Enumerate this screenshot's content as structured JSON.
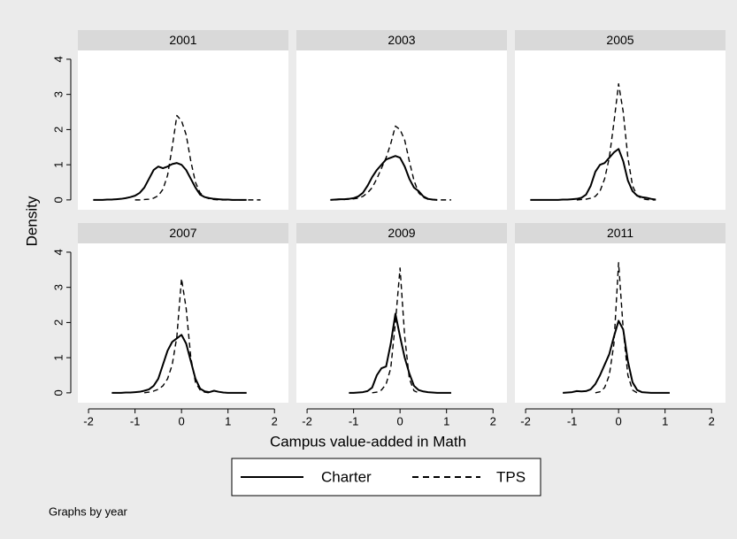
{
  "figure": {
    "x_label": "Campus value-added in Math",
    "y_label": "Density",
    "note": "Graphs by year"
  },
  "chart_data": [
    {
      "type": "line",
      "title": "2001",
      "x": [
        -2,
        -1.9,
        -1.8,
        -1.7,
        -1.6,
        -1.5,
        -1.4,
        -1.3,
        -1.2,
        -1.1,
        -1,
        -0.9,
        -0.8,
        -0.7,
        -0.6,
        -0.5,
        -0.4,
        -0.3,
        -0.2,
        -0.1,
        0,
        0.1,
        0.2,
        0.3,
        0.4,
        0.5,
        0.6,
        0.7,
        0.8,
        0.9,
        1,
        1.1,
        1.2,
        1.3,
        1.4,
        1.5,
        1.6,
        1.7,
        1.8,
        1.9,
        2
      ],
      "series": [
        {
          "name": "Charter",
          "color": "#000000",
          "line_style": "solid",
          "values": [
            null,
            0,
            0,
            0,
            0.01,
            0.01,
            0.02,
            0.03,
            0.05,
            0.08,
            0.12,
            0.2,
            0.35,
            0.6,
            0.85,
            0.95,
            0.9,
            0.95,
            1.02,
            1.05,
            1.0,
            0.85,
            0.6,
            0.35,
            0.15,
            0.08,
            0.05,
            0.03,
            0.02,
            0.01,
            0.01,
            0,
            0,
            0,
            0,
            null,
            null,
            null,
            null,
            null,
            null
          ]
        },
        {
          "name": "TPS",
          "color": "#000000",
          "line_style": "dashed",
          "values": [
            null,
            null,
            null,
            null,
            null,
            null,
            null,
            null,
            null,
            null,
            0,
            0,
            0.01,
            0.02,
            0.05,
            0.12,
            0.3,
            0.7,
            1.5,
            2.4,
            2.25,
            1.85,
            1.1,
            0.5,
            0.2,
            0.08,
            0.03,
            0.01,
            0,
            0,
            0,
            0,
            0,
            0,
            0,
            0,
            0,
            0,
            null,
            null,
            null
          ]
        }
      ],
      "xlim": [
        -2.23,
        2.3
      ],
      "ylim": [
        -0.28,
        4.25
      ],
      "yticks": [
        0,
        1,
        2,
        3,
        4
      ]
    },
    {
      "type": "line",
      "title": "2003",
      "x": [
        -2,
        -1.9,
        -1.8,
        -1.7,
        -1.6,
        -1.5,
        -1.4,
        -1.3,
        -1.2,
        -1.1,
        -1,
        -0.9,
        -0.8,
        -0.7,
        -0.6,
        -0.5,
        -0.4,
        -0.3,
        -0.2,
        -0.1,
        0,
        0.1,
        0.2,
        0.3,
        0.4,
        0.5,
        0.6,
        0.7,
        0.8,
        0.9,
        1,
        1.1,
        1.2,
        1.3,
        1.4,
        1.5,
        1.6,
        1.7,
        1.8,
        1.9,
        2
      ],
      "series": [
        {
          "name": "Charter",
          "color": "#000000",
          "line_style": "solid",
          "values": [
            null,
            null,
            null,
            null,
            null,
            0,
            0.01,
            0.02,
            0.02,
            0.03,
            0.05,
            0.1,
            0.2,
            0.4,
            0.65,
            0.85,
            1.0,
            1.15,
            1.2,
            1.25,
            1.2,
            0.95,
            0.6,
            0.35,
            0.25,
            0.1,
            0.03,
            0.01,
            0,
            null,
            null,
            null,
            null,
            null,
            null,
            null,
            null,
            null,
            null,
            null,
            null
          ]
        },
        {
          "name": "TPS",
          "color": "#000000",
          "line_style": "dashed",
          "values": [
            null,
            null,
            null,
            null,
            null,
            null,
            0,
            0.01,
            0.01,
            0.02,
            0.03,
            0.05,
            0.1,
            0.2,
            0.35,
            0.6,
            0.9,
            1.2,
            1.6,
            2.1,
            2.0,
            1.7,
            1.1,
            0.55,
            0.2,
            0.07,
            0.02,
            0.01,
            0,
            0,
            0,
            0,
            null,
            null,
            null,
            null,
            null,
            null,
            null,
            null,
            null
          ]
        }
      ],
      "xlim": [
        -2.23,
        2.3
      ],
      "ylim": [
        -0.28,
        4.25
      ]
    },
    {
      "type": "line",
      "title": "2005",
      "x": [
        -2,
        -1.9,
        -1.8,
        -1.7,
        -1.6,
        -1.5,
        -1.4,
        -1.3,
        -1.2,
        -1.1,
        -1,
        -0.9,
        -0.8,
        -0.7,
        -0.6,
        -0.5,
        -0.4,
        -0.3,
        -0.2,
        -0.1,
        0,
        0.1,
        0.2,
        0.3,
        0.4,
        0.5,
        0.6,
        0.7,
        0.8,
        0.9,
        1,
        1.1,
        1.2,
        1.3,
        1.4,
        1.5,
        1.6,
        1.7,
        1.8,
        1.9,
        2
      ],
      "series": [
        {
          "name": "Charter",
          "color": "#000000",
          "line_style": "solid",
          "values": [
            null,
            0,
            0,
            0,
            0,
            0,
            0,
            0,
            0.01,
            0.01,
            0.02,
            0.03,
            0.06,
            0.15,
            0.4,
            0.8,
            1.0,
            1.05,
            1.2,
            1.35,
            1.45,
            1.1,
            0.55,
            0.25,
            0.12,
            0.08,
            0.06,
            0.03,
            0.01,
            null,
            null,
            null,
            null,
            null,
            null,
            null,
            null,
            null,
            null,
            null,
            null
          ]
        },
        {
          "name": "TPS",
          "color": "#000000",
          "line_style": "dashed",
          "values": [
            null,
            null,
            null,
            null,
            null,
            null,
            null,
            null,
            null,
            null,
            null,
            0,
            0.01,
            0.02,
            0.05,
            0.1,
            0.25,
            0.6,
            1.2,
            2.2,
            3.3,
            2.5,
            1.2,
            0.4,
            0.12,
            0.04,
            0.01,
            0,
            0,
            null,
            null,
            null,
            null,
            null,
            null,
            null,
            null,
            null,
            null,
            null,
            null
          ]
        }
      ],
      "xlim": [
        -2.23,
        2.3
      ],
      "ylim": [
        -0.28,
        4.25
      ]
    },
    {
      "type": "line",
      "title": "2007",
      "x": [
        -2,
        -1.9,
        -1.8,
        -1.7,
        -1.6,
        -1.5,
        -1.4,
        -1.3,
        -1.2,
        -1.1,
        -1,
        -0.9,
        -0.8,
        -0.7,
        -0.6,
        -0.5,
        -0.4,
        -0.3,
        -0.2,
        -0.1,
        0,
        0.1,
        0.2,
        0.3,
        0.4,
        0.5,
        0.6,
        0.7,
        0.8,
        0.9,
        1,
        1.1,
        1.2,
        1.3,
        1.4,
        1.5,
        1.6,
        1.7,
        1.8,
        1.9,
        2
      ],
      "series": [
        {
          "name": "Charter",
          "color": "#000000",
          "line_style": "solid",
          "values": [
            null,
            null,
            null,
            null,
            null,
            0,
            0,
            0,
            0.01,
            0.01,
            0.02,
            0.03,
            0.06,
            0.1,
            0.2,
            0.4,
            0.8,
            1.2,
            1.45,
            1.55,
            1.65,
            1.4,
            0.9,
            0.4,
            0.12,
            0.04,
            0.02,
            0.06,
            0.03,
            0.01,
            0,
            0,
            0,
            0,
            0,
            null,
            null,
            null,
            null,
            null,
            null
          ]
        },
        {
          "name": "TPS",
          "color": "#000000",
          "line_style": "dashed",
          "values": [
            null,
            null,
            null,
            null,
            null,
            null,
            null,
            null,
            null,
            null,
            null,
            null,
            0,
            0.02,
            0.05,
            0.1,
            0.2,
            0.4,
            0.8,
            1.6,
            3.25,
            2.4,
            1.0,
            0.3,
            0.08,
            0.02,
            0,
            null,
            null,
            null,
            null,
            null,
            null,
            null,
            null,
            null,
            null,
            null,
            null,
            null,
            null
          ]
        }
      ],
      "xlim": [
        -2.23,
        2.3
      ],
      "ylim": [
        -0.28,
        4.25
      ],
      "xticks": [
        -2,
        -1,
        0,
        1,
        2
      ],
      "yticks": [
        0,
        1,
        2,
        3,
        4
      ]
    },
    {
      "type": "line",
      "title": "2009",
      "x": [
        -2,
        -1.9,
        -1.8,
        -1.7,
        -1.6,
        -1.5,
        -1.4,
        -1.3,
        -1.2,
        -1.1,
        -1,
        -0.9,
        -0.8,
        -0.7,
        -0.6,
        -0.5,
        -0.4,
        -0.3,
        -0.2,
        -0.1,
        0,
        0.1,
        0.2,
        0.3,
        0.4,
        0.5,
        0.6,
        0.7,
        0.8,
        0.9,
        1,
        1.1,
        1.2,
        1.3,
        1.4,
        1.5,
        1.6,
        1.7,
        1.8,
        1.9,
        2
      ],
      "series": [
        {
          "name": "Charter",
          "color": "#000000",
          "line_style": "solid",
          "values": [
            null,
            null,
            null,
            null,
            null,
            null,
            null,
            null,
            null,
            0,
            0,
            0.01,
            0.02,
            0.05,
            0.15,
            0.5,
            0.7,
            0.75,
            1.4,
            2.25,
            1.6,
            1.0,
            0.55,
            0.2,
            0.08,
            0.04,
            0.02,
            0.01,
            0,
            0,
            0,
            0,
            null,
            null,
            null,
            null,
            null,
            null,
            null,
            null,
            null
          ]
        },
        {
          "name": "TPS",
          "color": "#000000",
          "line_style": "dashed",
          "values": [
            null,
            null,
            null,
            null,
            null,
            null,
            null,
            null,
            null,
            null,
            null,
            null,
            null,
            null,
            0,
            0.02,
            0.08,
            0.25,
            0.7,
            2.0,
            3.55,
            1.6,
            0.4,
            0.06,
            0,
            null,
            null,
            null,
            null,
            null,
            null,
            null,
            null,
            null,
            null,
            null,
            null,
            null,
            null,
            null,
            null
          ]
        }
      ],
      "xlim": [
        -2.23,
        2.3
      ],
      "ylim": [
        -0.28,
        4.25
      ],
      "xticks": [
        -2,
        -1,
        0,
        1,
        2
      ]
    },
    {
      "type": "line",
      "title": "2011",
      "x": [
        -2,
        -1.9,
        -1.8,
        -1.7,
        -1.6,
        -1.5,
        -1.4,
        -1.3,
        -1.2,
        -1.1,
        -1,
        -0.9,
        -0.8,
        -0.7,
        -0.6,
        -0.5,
        -0.4,
        -0.3,
        -0.2,
        -0.1,
        0,
        0.1,
        0.2,
        0.3,
        0.4,
        0.5,
        0.6,
        0.7,
        0.8,
        0.9,
        1,
        1.1,
        1.2,
        1.3,
        1.4,
        1.5,
        1.6,
        1.7,
        1.8,
        1.9,
        2
      ],
      "series": [
        {
          "name": "Charter",
          "color": "#000000",
          "line_style": "solid",
          "values": [
            null,
            null,
            null,
            null,
            null,
            null,
            null,
            null,
            0,
            0.01,
            0.02,
            0.05,
            0.04,
            0.05,
            0.1,
            0.25,
            0.5,
            0.8,
            1.1,
            1.6,
            2.05,
            1.8,
            0.9,
            0.3,
            0.08,
            0.02,
            0.01,
            0,
            0,
            0,
            0,
            0,
            null,
            null,
            null,
            null,
            null,
            null,
            null,
            null,
            null
          ]
        },
        {
          "name": "TPS",
          "color": "#000000",
          "line_style": "dashed",
          "values": [
            null,
            null,
            null,
            null,
            null,
            null,
            null,
            null,
            null,
            null,
            null,
            null,
            null,
            null,
            null,
            0,
            0.03,
            0.15,
            0.5,
            1.4,
            3.7,
            1.8,
            0.5,
            0.08,
            0,
            null,
            null,
            null,
            null,
            null,
            null,
            null,
            null,
            null,
            null,
            null,
            null,
            null,
            null,
            null,
            null
          ]
        }
      ],
      "xlim": [
        -2.23,
        2.3
      ],
      "ylim": [
        -0.28,
        4.25
      ],
      "xticks": [
        -2,
        -1,
        0,
        1,
        2
      ]
    }
  ]
}
